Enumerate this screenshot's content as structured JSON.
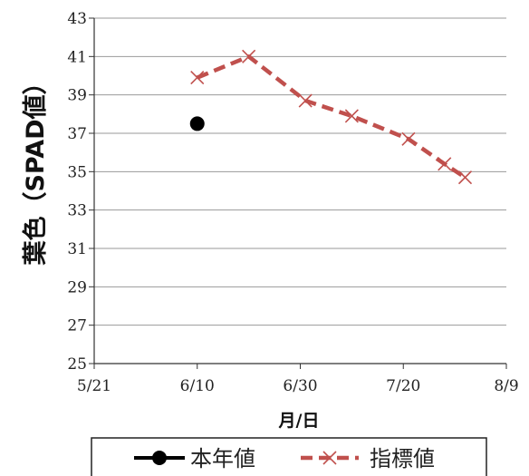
{
  "chart_data": {
    "type": "line",
    "title": "",
    "xlabel": "月/日",
    "ylabel": "葉色（SPAD値）",
    "x_ticks": [
      "5/21",
      "6/10",
      "6/30",
      "7/20",
      "8/9"
    ],
    "x_range": [
      "5/21",
      "8/9"
    ],
    "ylim": [
      25,
      43
    ],
    "y_ticks": [
      25,
      27,
      29,
      31,
      33,
      35,
      37,
      39,
      41,
      43
    ],
    "grid": true,
    "legend_position": "bottom",
    "series": [
      {
        "name": "本年値",
        "style": "marker",
        "color": "#000000",
        "points": [
          {
            "x": "6/10",
            "y": 37.5
          }
        ]
      },
      {
        "name": "指標値",
        "style": "dashed-x",
        "color": "#c0504d",
        "points": [
          {
            "x": "6/10",
            "y": 39.9
          },
          {
            "x": "6/20",
            "y": 41.0
          },
          {
            "x": "7/1",
            "y": 38.7
          },
          {
            "x": "7/10",
            "y": 37.9
          },
          {
            "x": "7/21",
            "y": 36.7
          },
          {
            "x": "7/28",
            "y": 35.4
          },
          {
            "x": "8/1",
            "y": 34.7
          }
        ]
      }
    ]
  }
}
